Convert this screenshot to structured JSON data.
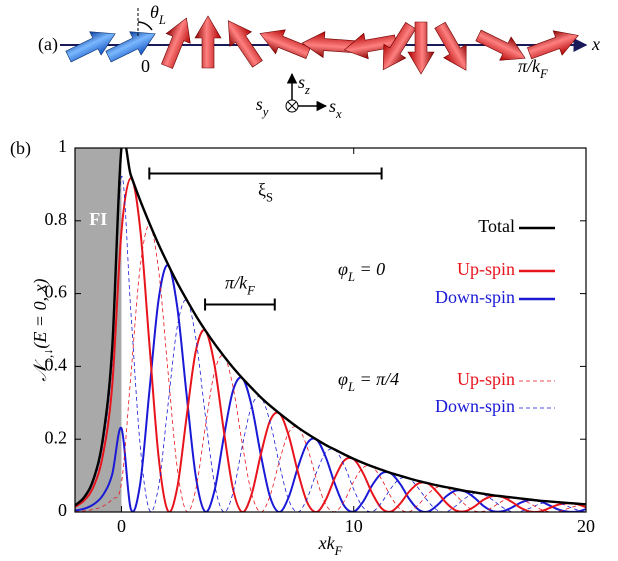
{
  "panel_a": {
    "label": "(a)",
    "theta": [
      {
        "t": "θ"
      },
      {
        "t": "L",
        "sub": true
      }
    ],
    "origin": "0",
    "axis_label": "x",
    "end_label": [
      {
        "t": "π/k"
      },
      {
        "t": "F",
        "sub": true
      }
    ],
    "sz": [
      {
        "t": "s"
      },
      {
        "t": "z",
        "sub": true
      }
    ],
    "sy": [
      {
        "t": "s"
      },
      {
        "t": "y",
        "sub": true
      }
    ],
    "sx": [
      {
        "t": "s"
      },
      {
        "t": "x",
        "sub": true
      }
    ]
  },
  "chart_data": {
    "type": "line",
    "panel_label": "(b)",
    "xlabel": [
      {
        "t": "xk"
      },
      {
        "t": "F",
        "sub": true
      }
    ],
    "ylabel": [
      {
        "t": "𝒩"
      },
      {
        "t": "↑,↓",
        "sub": true
      },
      {
        "t": "(E = 0, x)"
      }
    ],
    "xlim": [
      -2,
      20
    ],
    "ylim": [
      0,
      1
    ],
    "xticks": [
      0,
      10,
      20
    ],
    "yticks": [
      0,
      0.2,
      0.4,
      0.6,
      0.8,
      1
    ],
    "region": {
      "label": "FI",
      "x": [
        -2,
        0
      ],
      "color": "#a9a9a9"
    },
    "spans": [
      {
        "label": [
          {
            "t": "ξ"
          },
          {
            "t": "S",
            "sub": true
          }
        ],
        "x": [
          1.2,
          11.2
        ],
        "y": 0.93
      },
      {
        "label": [
          {
            "t": "π/k"
          },
          {
            "t": "F",
            "sub": true
          }
        ],
        "x": [
          3.6,
          6.6
        ],
        "y": 0.57
      }
    ],
    "legend_groups": [
      [
        {
          "t": "φ"
        },
        {
          "t": "L",
          "sub": true
        },
        {
          "t": " = 0"
        }
      ],
      [
        {
          "t": "φ"
        },
        {
          "t": "L",
          "sub": true
        },
        {
          "t": " = π/4"
        }
      ]
    ],
    "x": [
      -2,
      -1.6,
      -1.2,
      -0.8,
      -0.4,
      0,
      0.4,
      0.8,
      1.2,
      1.6,
      2,
      2.4,
      2.8,
      3.2,
      3.6,
      4,
      4.4,
      4.8,
      5.2,
      5.6,
      6,
      6.4,
      6.8,
      7.2,
      7.6,
      8,
      8.4,
      8.8,
      9.2,
      9.6,
      10,
      10.4,
      10.8,
      11.2,
      11.6,
      12,
      12.4,
      12.8,
      13.2,
      13.6,
      14,
      14.4,
      14.8,
      15.2,
      15.6,
      16,
      16.4,
      16.8,
      17.2,
      17.6,
      18,
      18.4,
      18.8,
      19.2,
      19.6,
      20
    ],
    "series": [
      {
        "name": "Total",
        "color": "#000000",
        "dash": false,
        "values": [
          0.018,
          0.041,
          0.091,
          0.202,
          0.449,
          1,
          0.926,
          0.857,
          0.794,
          0.735,
          0.681,
          0.63,
          0.584,
          0.54,
          0.5,
          0.463,
          0.429,
          0.397,
          0.368,
          0.341,
          0.315,
          0.292,
          0.271,
          0.251,
          0.232,
          0.215,
          0.199,
          0.184,
          0.171,
          0.158,
          0.146,
          0.135,
          0.125,
          0.116,
          0.107,
          0.0995,
          0.092,
          0.085,
          0.079,
          0.073,
          0.068,
          0.063,
          0.058,
          0.054,
          0.05,
          0.046,
          0.043,
          0.04,
          0.037,
          0.034,
          0.031,
          0.029,
          0.027,
          0.025,
          0.023,
          0.021
        ]
      },
      {
        "name": "Up-spin",
        "color": "#e8141c",
        "dash": false,
        "values": [
          0.014,
          0.032,
          0.07,
          0.156,
          0.346,
          0.77,
          0.917,
          0.782,
          0.464,
          0.151,
          0.003,
          0.066,
          0.259,
          0.442,
          0.499,
          0.406,
          0.226,
          0.064,
          0.0,
          0.048,
          0.158,
          0.251,
          0.271,
          0.21,
          0.109,
          0.026,
          0.0,
          0.034,
          0.096,
          0.142,
          0.145,
          0.107,
          0.051,
          0.01,
          0.001,
          0.023,
          0.057,
          0.079,
          0.078,
          0.054,
          0.024,
          0.004,
          0.002,
          0.015,
          0.034,
          0.044,
          0.041,
          0.028,
          0.011,
          0.001,
          0.001,
          0.01,
          0.02,
          0.024,
          0.022,
          0.013
        ]
      },
      {
        "name": "Down-spin",
        "color": "#1a1ad6",
        "dash": false,
        "values": [
          0.004,
          0.009,
          0.021,
          0.046,
          0.103,
          0.23,
          0.009,
          0.075,
          0.33,
          0.584,
          0.678,
          0.564,
          0.325,
          0.098,
          0.001,
          0.057,
          0.203,
          0.333,
          0.368,
          0.293,
          0.157,
          0.041,
          0.0,
          0.041,
          0.123,
          0.189,
          0.199,
          0.15,
          0.075,
          0.016,
          0.001,
          0.028,
          0.074,
          0.106,
          0.106,
          0.077,
          0.035,
          0.006,
          0.001,
          0.019,
          0.044,
          0.059,
          0.056,
          0.039,
          0.016,
          0.002,
          0.002,
          0.012,
          0.026,
          0.033,
          0.03,
          0.019,
          0.007,
          0.001,
          0.001,
          0.008
        ]
      },
      {
        "name": "Up-spin",
        "color": "#e8141c",
        "dash": true,
        "values": [
          0.001,
          0.003,
          0.007,
          0.016,
          0.035,
          0.079,
          0.371,
          0.67,
          0.788,
          0.664,
          0.389,
          0.122,
          0.002,
          0.062,
          0.229,
          0.383,
          0.429,
          0.345,
          0.188,
          0.051,
          0.0,
          0.045,
          0.14,
          0.218,
          0.232,
          0.177,
          0.09,
          0.02,
          0.001,
          0.031,
          0.084,
          0.122,
          0.124,
          0.09,
          0.042,
          0.008,
          0.001,
          0.021,
          0.05,
          0.068,
          0.067,
          0.046,
          0.02,
          0.003,
          0.002,
          0.014,
          0.03,
          0.039,
          0.035,
          0.023,
          0.009,
          0.001,
          0.001,
          0.009,
          0.017,
          0.021
        ]
      },
      {
        "name": "Down-spin",
        "color": "#1a1ad6",
        "dash": true,
        "values": [
          0.017,
          0.038,
          0.084,
          0.186,
          0.414,
          0.921,
          0.555,
          0.187,
          0.006,
          0.071,
          0.292,
          0.508,
          0.582,
          0.478,
          0.271,
          0.08,
          0.0,
          0.052,
          0.18,
          0.29,
          0.315,
          0.247,
          0.131,
          0.033,
          0.0,
          0.038,
          0.109,
          0.164,
          0.17,
          0.127,
          0.062,
          0.013,
          0.001,
          0.026,
          0.065,
          0.092,
          0.091,
          0.064,
          0.029,
          0.005,
          0.001,
          0.017,
          0.038,
          0.051,
          0.048,
          0.032,
          0.013,
          0.001,
          0.002,
          0.011,
          0.022,
          0.028,
          0.026,
          0.016,
          0.006,
          0.0
        ]
      }
    ]
  }
}
